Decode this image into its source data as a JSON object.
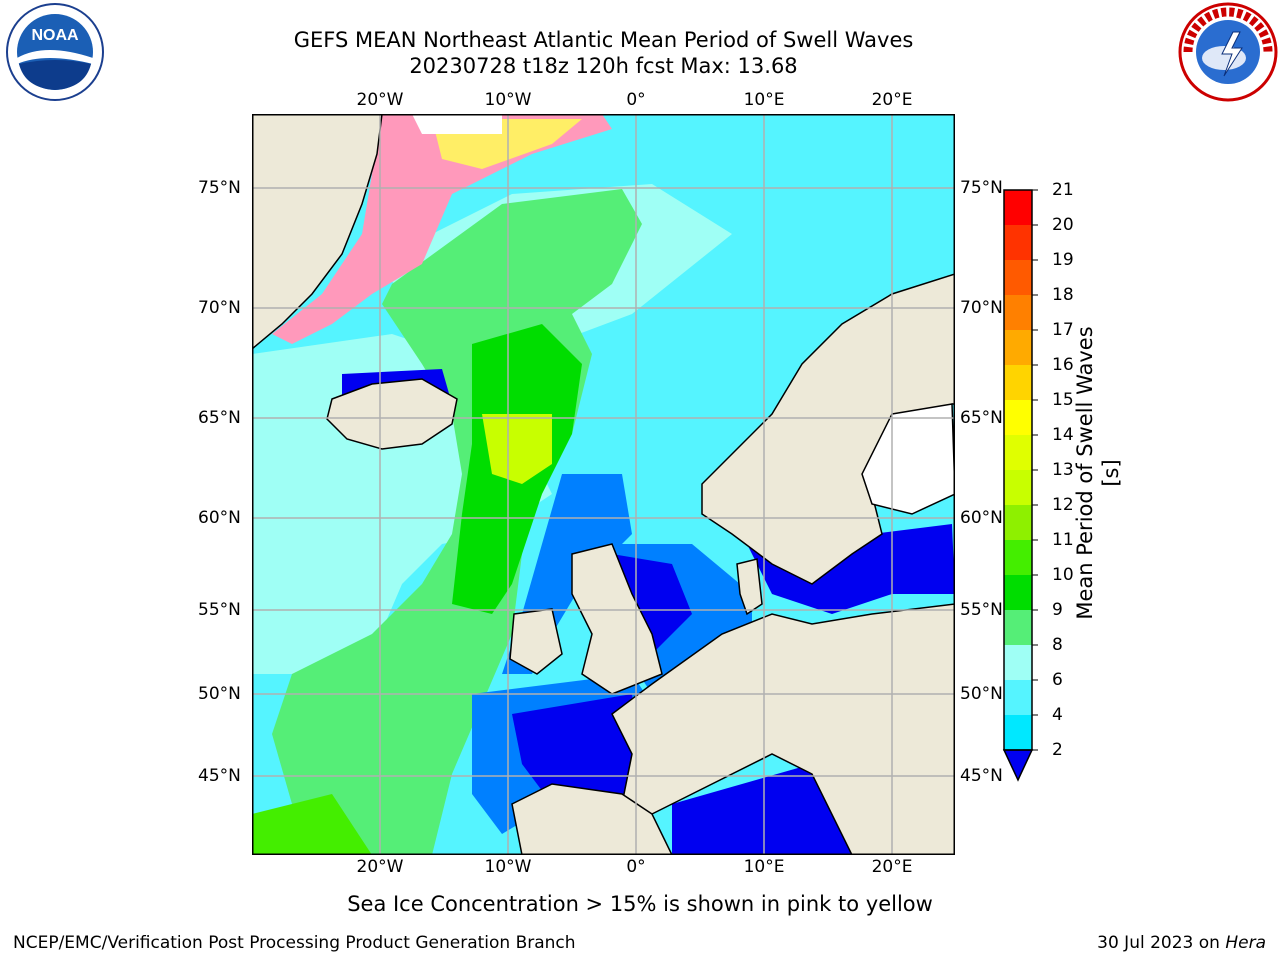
{
  "title": {
    "line1": "GEFS MEAN Northeast Atlantic Mean Period of Swell Waves",
    "line2": "20230728 t18z 120h fcst   Max: 13.68"
  },
  "logos": {
    "left": "noara-logo",
    "right": "national-weather-service-logo"
  },
  "axes": {
    "lon_labels": [
      "20°W",
      "10°W",
      "0°",
      "10°E",
      "20°E"
    ],
    "lat_labels": [
      "75°N",
      "70°N",
      "65°N",
      "60°N",
      "55°N",
      "50°N",
      "45°N"
    ]
  },
  "colorbar": {
    "label": "Mean Period of Swell Waves [s]",
    "ticks": [
      "21",
      "20",
      "19",
      "18",
      "17",
      "16",
      "15",
      "14",
      "13",
      "12",
      "11",
      "10",
      "9",
      "8",
      "6",
      "4",
      "2"
    ],
    "colors": [
      "#ff0000",
      "#ff3300",
      "#ff5a00",
      "#ff8000",
      "#ffaa00",
      "#ffd400",
      "#ffff00",
      "#e0ff00",
      "#c8ff00",
      "#8ef000",
      "#44ee00",
      "#00dd00",
      "#55ee77",
      "#9ffff5",
      "#55f4ff",
      "#00e8ff",
      "#0080ff",
      "#0000f0"
    ]
  },
  "caption": "Sea Ice Concentration > 15% is shown in pink to yellow",
  "footer": {
    "left": "NCEP/EMC/Verification Post Processing Product Generation Branch",
    "right_date": "30 Jul 2023 on ",
    "right_host": "Hera"
  }
}
